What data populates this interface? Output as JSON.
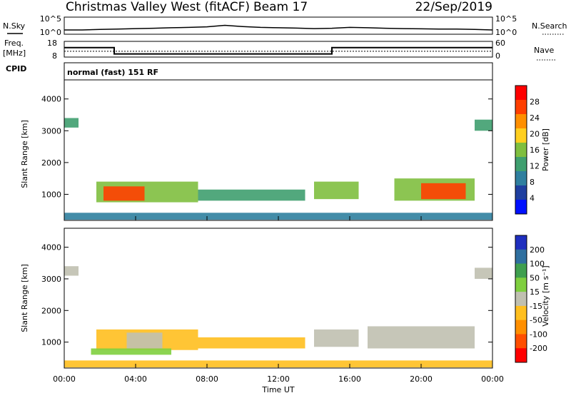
{
  "header": {
    "title": "Christmas Valley West (fitACF)",
    "beam": "Beam 17",
    "date": "22/Sep/2019"
  },
  "strip_panels": {
    "nsky_label": "N.Sky",
    "nsky_ticks": [
      "10^5",
      "10^0"
    ],
    "nsearch_label": "N.Search",
    "nsearch_ticks": [
      "10^5",
      "10^0"
    ],
    "freq_label": "Freq.",
    "freq_unit": "[MHz]",
    "freq_ticks": [
      "18",
      "8"
    ],
    "nave_label": "Nave",
    "nave_ticks": [
      "60",
      "0"
    ],
    "cpid_label": "CPID",
    "cpid_value": "normal (fast) 151 RF"
  },
  "time_axis": {
    "label": "Time UT",
    "ticks": [
      "00:00",
      "04:00",
      "08:00",
      "12:00",
      "16:00",
      "20:00",
      "00:00"
    ],
    "range_hours": [
      0,
      24
    ]
  },
  "colors": {
    "power_scale": [
      "#0010ff",
      "#1f3f9f",
      "#2f7f9f",
      "#3f9f6f",
      "#7fbf3f",
      "#ffcf1f",
      "#ff8f00",
      "#ff3f00",
      "#ff0000"
    ],
    "velocity_scale": [
      "#1f2fbf",
      "#2f6f9f",
      "#3f9f4f",
      "#7fcf3f",
      "#c0c0b0",
      "#ffbf1f",
      "#ff8f00",
      "#ff4f00",
      "#ff0000"
    ]
  },
  "chart_data": [
    {
      "type": "line",
      "panel": "N.Sky / N.Search",
      "x_hours": [
        0,
        1,
        2,
        3,
        4,
        5,
        6,
        7,
        8,
        9,
        10,
        11,
        12,
        13,
        14,
        15,
        16,
        17,
        18,
        19,
        20,
        21,
        22,
        23,
        24
      ],
      "values_fraction": [
        0.25,
        0.25,
        0.28,
        0.3,
        0.33,
        0.35,
        0.38,
        0.4,
        0.43,
        0.52,
        0.45,
        0.4,
        0.38,
        0.36,
        0.33,
        0.35,
        0.4,
        0.38,
        0.35,
        0.33,
        0.32,
        0.3,
        0.3,
        0.28,
        0.25
      ]
    },
    {
      "type": "line",
      "panel": "Freq. / Nave",
      "freq_mhz": [
        {
          "start": 0,
          "end": 2.8,
          "value": 14
        },
        {
          "start": 2.8,
          "end": 15,
          "value": 10
        },
        {
          "start": 15,
          "end": 24,
          "value": 14
        }
      ],
      "nave": [
        {
          "start": 0,
          "end": 24,
          "value": 22
        }
      ],
      "freq_ylim": [
        8,
        18
      ],
      "nave_ylim": [
        0,
        60
      ]
    },
    {
      "type": "heatmap",
      "panel": "Power",
      "ylabel": "Slant Range [km]",
      "yticks": [
        1000,
        2000,
        3000,
        4000
      ],
      "ylim": [
        180,
        4600
      ],
      "colorbar_label": "Power [dB]",
      "colorbar_ticks": [
        "4",
        "8",
        "12",
        "16",
        "20",
        "24",
        "28"
      ],
      "regions": [
        {
          "t0": 1.8,
          "t1": 7.5,
          "r0": 750,
          "r1": 1400,
          "level": 4
        },
        {
          "t0": 2.2,
          "t1": 4.5,
          "r0": 800,
          "r1": 1250,
          "level": 7
        },
        {
          "t0": 7.5,
          "t1": 13.5,
          "r0": 800,
          "r1": 1150,
          "level": 3
        },
        {
          "t0": 14.0,
          "t1": 16.5,
          "r0": 850,
          "r1": 1400,
          "level": 4
        },
        {
          "t0": 18.5,
          "t1": 23.0,
          "r0": 800,
          "r1": 1500,
          "level": 4
        },
        {
          "t0": 20.0,
          "t1": 22.5,
          "r0": 850,
          "r1": 1350,
          "level": 7
        },
        {
          "t0": 0.0,
          "t1": 0.8,
          "r0": 3100,
          "r1": 3400,
          "level": 3
        },
        {
          "t0": 23.0,
          "t1": 24.0,
          "r0": 3000,
          "r1": 3350,
          "level": 3
        },
        {
          "t0": 0.0,
          "t1": 24.0,
          "r0": 200,
          "r1": 420,
          "level": 2
        }
      ]
    },
    {
      "type": "heatmap",
      "panel": "Velocity",
      "ylabel": "Slant Range [km]",
      "yticks": [
        1000,
        2000,
        3000,
        4000
      ],
      "ylim": [
        180,
        4600
      ],
      "colorbar_label": "Velocity [m s⁻¹]",
      "colorbar_ticks": [
        "200",
        "100",
        "50",
        "15",
        "-15",
        "-50",
        "-100",
        "-200"
      ],
      "regions": [
        {
          "t0": 1.8,
          "t1": 7.5,
          "r0": 750,
          "r1": 1400,
          "level": 5
        },
        {
          "t0": 3.5,
          "t1": 5.5,
          "r0": 800,
          "r1": 1300,
          "level": 4
        },
        {
          "t0": 7.5,
          "t1": 13.5,
          "r0": 800,
          "r1": 1150,
          "level": 5
        },
        {
          "t0": 14.0,
          "t1": 16.5,
          "r0": 850,
          "r1": 1400,
          "level": 4
        },
        {
          "t0": 17.0,
          "t1": 23.0,
          "r0": 800,
          "r1": 1500,
          "level": 4
        },
        {
          "t0": 1.5,
          "t1": 6.0,
          "r0": 600,
          "r1": 800,
          "level": 3
        },
        {
          "t0": 0.0,
          "t1": 0.8,
          "r0": 3100,
          "r1": 3400,
          "level": 4
        },
        {
          "t0": 23.0,
          "t1": 24.0,
          "r0": 3000,
          "r1": 3350,
          "level": 4
        },
        {
          "t0": 0.0,
          "t1": 24.0,
          "r0": 200,
          "r1": 420,
          "level": 5
        }
      ]
    }
  ]
}
